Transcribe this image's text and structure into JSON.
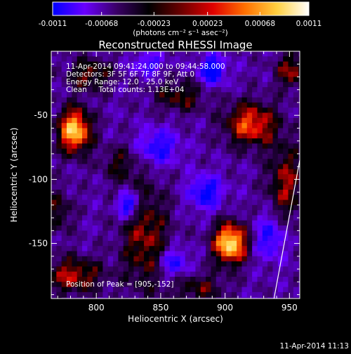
{
  "chart_data": {
    "type": "heatmap",
    "title": "Reconstructed RHESSI Image",
    "xlabel": "Heliocentric X (arcsec)",
    "ylabel": "Heliocentric Y (arcsec)",
    "xlim": [
      765,
      958
    ],
    "ylim": [
      -193,
      0
    ],
    "x_ticks": [
      800,
      850,
      900,
      950
    ],
    "y_ticks": [
      -50,
      -100,
      -150
    ],
    "colorbar": {
      "min": -0.0011,
      "max": 0.0011,
      "tick_values": [
        -0.0011,
        -0.00068,
        -0.00023,
        0.00023,
        0.00068,
        0.0011
      ],
      "tick_labels": [
        "-0.0011",
        "-0.00068",
        "-0.00023",
        "0.00023",
        "0.00068",
        "0.0011"
      ],
      "unit_label": "(photons cm⁻² s⁻¹ asec⁻²)",
      "colors": [
        "#0000ff",
        "#6a00ff",
        "#3a0066",
        "#000000",
        "#6a0000",
        "#e00000",
        "#ff7000",
        "#ffd040",
        "#ffffff"
      ]
    },
    "annotations": [
      "11-Apr-2014 09:41:24.000 to 09:44:58.000",
      "Detectors: 3F 5F 6F 7F 8F 9F, Att 0",
      "Energy Range: 12.0 - 25.0 keV",
      "Clean     Total counts: 1.13E+04"
    ],
    "peak_label": "Position of Peak = [905,-152]",
    "footer_date": "11-Apr-2014 11:13",
    "sources": [
      {
        "x": 783,
        "y": -62,
        "sx": 9,
        "sy": 12,
        "amp": 1.15
      },
      {
        "x": 904,
        "y": -150,
        "sx": 9,
        "sy": 11,
        "amp": 1.25
      },
      {
        "x": 920,
        "y": -57,
        "sx": 14,
        "sy": 12,
        "amp": 0.8
      },
      {
        "x": 782,
        "y": -175,
        "sx": 16,
        "sy": 10,
        "amp": 0.62
      },
      {
        "x": 795,
        "y": -18,
        "sx": 12,
        "sy": 9,
        "amp": 0.5
      },
      {
        "x": 952,
        "y": -15,
        "sx": 9,
        "sy": 10,
        "amp": 0.55
      },
      {
        "x": 947,
        "y": -103,
        "sx": 10,
        "sy": 22,
        "amp": 0.55
      },
      {
        "x": 838,
        "y": -145,
        "sx": 13,
        "sy": 30,
        "amp": 0.55
      },
      {
        "x": 865,
        "y": -35,
        "sx": 14,
        "sy": 9,
        "amp": 0.45
      },
      {
        "x": 770,
        "y": -125,
        "sx": 8,
        "sy": 12,
        "amp": 0.4
      },
      {
        "x": 880,
        "y": -185,
        "sx": 14,
        "sy": 8,
        "amp": 0.42
      },
      {
        "x": 818,
        "y": -88,
        "sx": 10,
        "sy": 10,
        "amp": 0.35
      },
      {
        "x": 825,
        "y": -120,
        "sx": 6,
        "sy": 7,
        "amp": -0.8
      },
      {
        "x": 890,
        "y": -15,
        "sx": 7,
        "sy": 8,
        "amp": -0.75
      },
      {
        "x": 885,
        "y": -110,
        "sx": 9,
        "sy": 9,
        "amp": -0.65
      },
      {
        "x": 935,
        "y": -145,
        "sx": 8,
        "sy": 12,
        "amp": -0.55
      },
      {
        "x": 860,
        "y": -165,
        "sx": 8,
        "sy": 8,
        "amp": -0.55
      },
      {
        "x": 848,
        "y": -75,
        "sx": 11,
        "sy": 10,
        "amp": -0.55
      },
      {
        "x": 840,
        "y": -10,
        "sx": 8,
        "sy": 6,
        "amp": -0.45
      }
    ],
    "limb_line": [
      [
        958,
        -85
      ],
      [
        938,
        -193
      ]
    ],
    "pixel_size": 4
  }
}
